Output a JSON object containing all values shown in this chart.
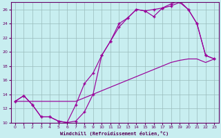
{
  "background_color": "#c8eef0",
  "grid_color": "#99bbbb",
  "line_color": "#990099",
  "xlim": [
    -0.5,
    23.5
  ],
  "ylim": [
    10,
    27
  ],
  "xticks": [
    0,
    1,
    2,
    3,
    4,
    5,
    6,
    7,
    8,
    9,
    10,
    11,
    12,
    13,
    14,
    15,
    16,
    17,
    18,
    19,
    20,
    21,
    22,
    23
  ],
  "yticks": [
    10,
    12,
    14,
    16,
    18,
    20,
    22,
    24,
    26
  ],
  "xlabel": "Windchill (Refroidissement éolien,°C)",
  "line1_x": [
    0,
    1,
    2,
    3,
    4,
    5,
    6,
    7,
    8,
    9,
    10,
    11,
    12,
    13,
    14,
    15,
    16,
    17,
    18,
    19,
    20,
    21,
    22,
    23
  ],
  "line1_y": [
    13,
    13.8,
    12.5,
    10.8,
    10.8,
    10.2,
    10.0,
    10.2,
    11.5,
    14.0,
    19.5,
    21.5,
    24.0,
    24.8,
    26.0,
    25.8,
    25.0,
    26.2,
    26.5,
    27.0,
    26.0,
    24.0,
    19.5,
    19.0
  ],
  "line2_x": [
    0,
    2,
    3,
    4,
    5,
    6,
    7,
    8,
    9,
    10,
    11,
    12,
    13,
    14,
    15,
    16,
    17,
    18,
    19,
    20,
    21,
    22,
    23
  ],
  "line2_y": [
    13,
    13,
    13,
    13,
    13,
    13,
    13,
    13.5,
    14,
    14.5,
    15,
    15.5,
    16,
    16.5,
    17,
    17.5,
    18,
    18.5,
    18.8,
    19,
    19,
    18.5,
    19
  ],
  "line3_x": [
    0,
    1,
    2,
    3,
    4,
    5,
    6,
    7,
    8,
    9,
    10,
    11,
    12,
    13,
    14,
    15,
    16,
    17,
    18,
    19,
    20,
    21,
    22,
    23
  ],
  "line3_y": [
    13,
    13.8,
    12.5,
    10.8,
    10.8,
    10.2,
    10.0,
    12.5,
    15.5,
    17.0,
    19.5,
    21.5,
    23.5,
    24.8,
    26.0,
    25.8,
    26.0,
    26.2,
    26.8,
    27.2,
    26.0,
    24.0,
    19.5,
    19.0
  ]
}
